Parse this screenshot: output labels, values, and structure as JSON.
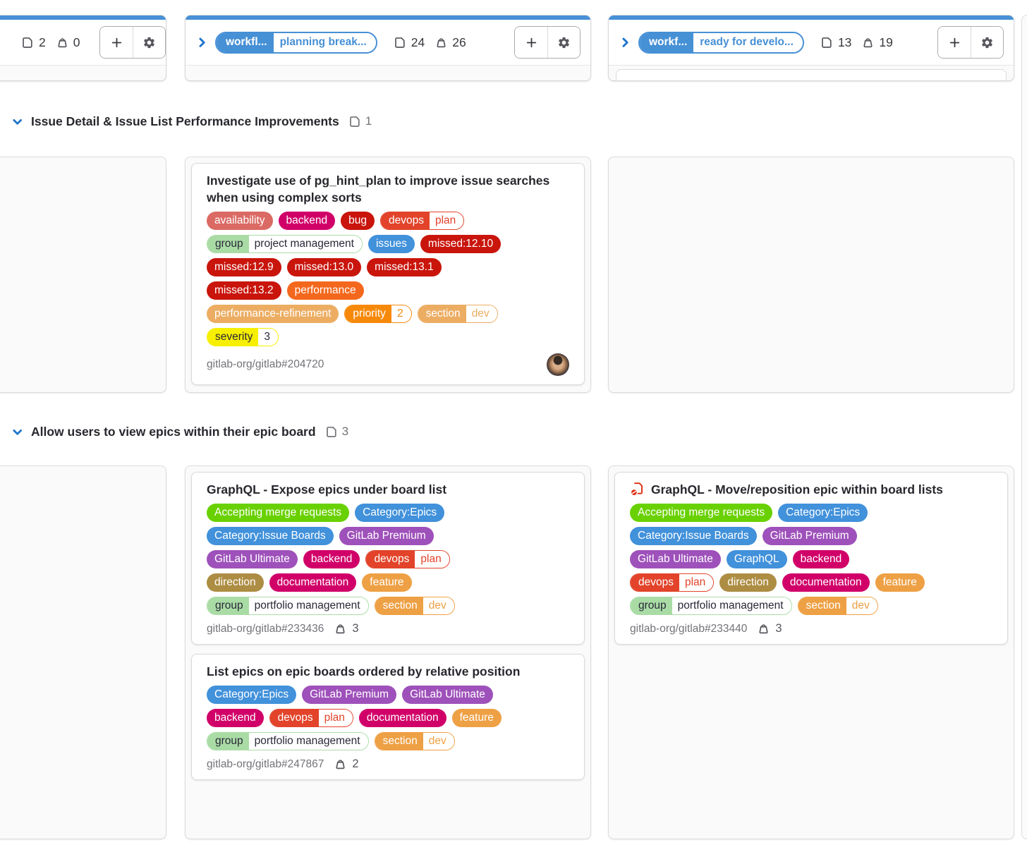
{
  "colors": {
    "accent_blue": "#4690D6",
    "chevron_blue": "#1F75CB",
    "icon_gray": "#57565C",
    "muted_text": "#737278",
    "card_border": "#DBDBDB",
    "cell_bg": "#FAFAFA"
  },
  "icons": [
    "issue-icon",
    "weight-icon",
    "plus-icon",
    "gear-icon",
    "chevron-right-icon",
    "chevron-down-icon",
    "blocked-icon",
    "user-avatar"
  ],
  "columns": [
    {
      "issue_count": "2",
      "weight": "0"
    },
    {
      "label_key": "workfl...",
      "label_value": "planning break...",
      "issue_count": "24",
      "weight": "26"
    },
    {
      "label_key": "workf...",
      "label_value": "ready for develo...",
      "issue_count": "13",
      "weight": "19"
    }
  ],
  "header_buttons": {
    "add": "+",
    "settings": "list settings"
  },
  "swimlanes": [
    {
      "title": "Issue Detail & Issue List Performance Improvements",
      "issue_count": "1"
    },
    {
      "title": "Allow users to view epics within their epic board",
      "issue_count": "3"
    }
  ],
  "cards": [
    {
      "title": "Investigate use of pg_hint_plan to improve issue searches when using complex sorts",
      "reference": "gitlab-org/gitlab#204720",
      "has_avatar": true,
      "labels": [
        [
          {
            "text": "availability",
            "bg": "#DB6A64"
          },
          {
            "text": "backend",
            "bg": "#D10069"
          },
          {
            "text": "bug",
            "bg": "#C9150C"
          },
          {
            "key": "devops",
            "value": "plan",
            "bg": "#E2432A"
          }
        ],
        [
          {
            "key": "group",
            "value": "project management",
            "bg": "#A9DCA5",
            "fg": "#2B2838",
            "value_fg": "#2B2838"
          },
          {
            "text": "issues",
            "bg": "#4191DB"
          },
          {
            "text": "missed:12.10",
            "bg": "#C9150C"
          }
        ],
        [
          {
            "text": "missed:12.9",
            "bg": "#C9150C"
          },
          {
            "text": "missed:13.0",
            "bg": "#C9150C"
          },
          {
            "text": "missed:13.1",
            "bg": "#C9150C"
          }
        ],
        [
          {
            "text": "missed:13.2",
            "bg": "#C9150C"
          },
          {
            "text": "performance",
            "bg": "#F4681D"
          }
        ],
        [
          {
            "text": "performance-refinement",
            "bg": "#ECAD63"
          },
          {
            "key": "priority",
            "value": "2",
            "bg": "#F7890A"
          },
          {
            "key": "section",
            "value": "dev",
            "bg": "#ECAD63"
          }
        ],
        [
          {
            "key": "severity",
            "value": "3",
            "bg": "#F7EF00",
            "fg": "#2B2838",
            "value_fg": "#2B2838"
          }
        ]
      ]
    },
    {
      "title": "GraphQL - Expose epics under board list",
      "reference": "gitlab-org/gitlab#233436",
      "weight": "3",
      "labels": [
        [
          {
            "text": "Accepting merge requests",
            "bg": "#69D100"
          },
          {
            "text": "Category:Epics",
            "bg": "#4191DB"
          }
        ],
        [
          {
            "text": "Category:Issue Boards",
            "bg": "#4191DB"
          },
          {
            "text": "GitLab Premium",
            "bg": "#9E51BA"
          }
        ],
        [
          {
            "text": "GitLab Ultimate",
            "bg": "#9E51BA"
          },
          {
            "text": "backend",
            "bg": "#D10069"
          },
          {
            "key": "devops",
            "value": "plan",
            "bg": "#E2432A"
          }
        ],
        [
          {
            "text": "direction",
            "bg": "#AD8D43"
          },
          {
            "text": "documentation",
            "bg": "#D10069"
          },
          {
            "text": "feature",
            "bg": "#EEA044"
          }
        ],
        [
          {
            "key": "group",
            "value": "portfolio management",
            "bg": "#A9DCA5",
            "fg": "#2B2838",
            "value_fg": "#2B2838"
          },
          {
            "key": "section",
            "value": "dev",
            "bg": "#EEA044"
          }
        ]
      ]
    },
    {
      "title": "List epics on epic boards ordered by relative position",
      "reference": "gitlab-org/gitlab#247867",
      "weight": "2",
      "labels": [
        [
          {
            "text": "Category:Epics",
            "bg": "#4191DB"
          },
          {
            "text": "GitLab Premium",
            "bg": "#9E51BA"
          },
          {
            "text": "GitLab Ultimate",
            "bg": "#9E51BA"
          }
        ],
        [
          {
            "text": "backend",
            "bg": "#D10069"
          },
          {
            "key": "devops",
            "value": "plan",
            "bg": "#E2432A"
          },
          {
            "text": "documentation",
            "bg": "#D10069"
          },
          {
            "text": "feature",
            "bg": "#EEA044"
          }
        ],
        [
          {
            "key": "group",
            "value": "portfolio management",
            "bg": "#A9DCA5",
            "fg": "#2B2838",
            "value_fg": "#2B2838"
          },
          {
            "key": "section",
            "value": "dev",
            "bg": "#EEA044"
          }
        ]
      ]
    },
    {
      "title": "GraphQL - Move/reposition epic within board lists",
      "reference": "gitlab-org/gitlab#233440",
      "weight": "3",
      "blocked": true,
      "labels": [
        [
          {
            "text": "Accepting merge requests",
            "bg": "#69D100"
          },
          {
            "text": "Category:Epics",
            "bg": "#4191DB"
          }
        ],
        [
          {
            "text": "Category:Issue Boards",
            "bg": "#4191DB"
          },
          {
            "text": "GitLab Premium",
            "bg": "#9E51BA"
          }
        ],
        [
          {
            "text": "GitLab Ultimate",
            "bg": "#9E51BA"
          },
          {
            "text": "GraphQL",
            "bg": "#4191DB"
          },
          {
            "text": "backend",
            "bg": "#D10069"
          }
        ],
        [
          {
            "key": "devops",
            "value": "plan",
            "bg": "#E2432A"
          },
          {
            "text": "direction",
            "bg": "#AD8D43"
          },
          {
            "text": "documentation",
            "bg": "#D10069"
          },
          {
            "text": "feature",
            "bg": "#EEA044"
          }
        ],
        [
          {
            "key": "group",
            "value": "portfolio management",
            "bg": "#A9DCA5",
            "fg": "#2B2838",
            "value_fg": "#2B2838"
          },
          {
            "key": "section",
            "value": "dev",
            "bg": "#EEA044"
          }
        ]
      ]
    }
  ]
}
